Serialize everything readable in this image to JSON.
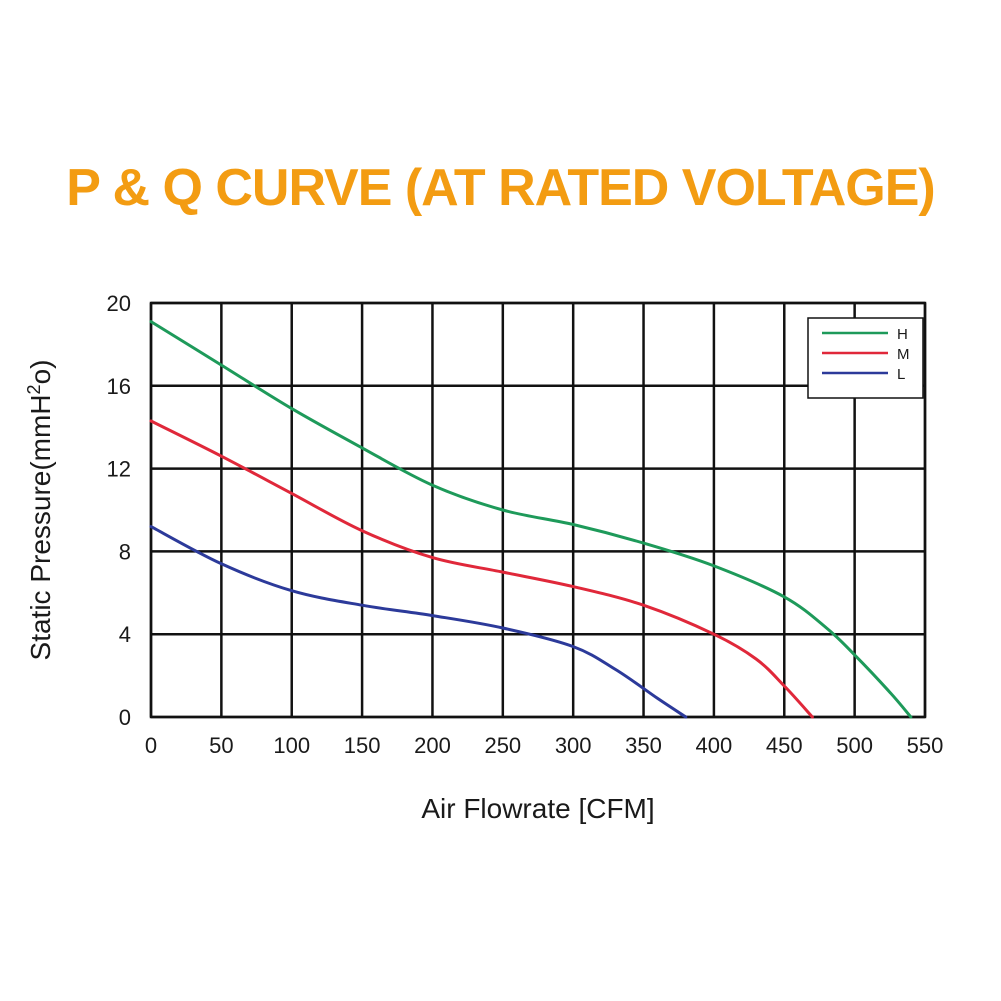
{
  "chart_data": {
    "type": "line",
    "title": "P & Q CURVE (AT RATED VOLTAGE)",
    "xlabel": "Air  Flowrate   [CFM]",
    "ylabel_main": "Static Pressure(mmH",
    "ylabel_sup": "2",
    "ylabel_end": "o)",
    "xlim": [
      0,
      550
    ],
    "ylim": [
      0,
      20
    ],
    "x_ticks": [
      "0",
      "50",
      "100",
      "150",
      "200",
      "250",
      "300",
      "350",
      "400",
      "450",
      "500",
      "550"
    ],
    "y_ticks": [
      "0",
      "4",
      "8",
      "12",
      "16",
      "20"
    ],
    "grid": true,
    "legend_position": "top-right",
    "series": [
      {
        "name": "H",
        "color": "#1e9a5a",
        "points": [
          [
            0,
            19.1
          ],
          [
            50,
            17.0
          ],
          [
            100,
            14.9
          ],
          [
            150,
            13.0
          ],
          [
            200,
            11.2
          ],
          [
            250,
            10.0
          ],
          [
            300,
            9.3
          ],
          [
            350,
            8.4
          ],
          [
            400,
            7.3
          ],
          [
            450,
            5.8
          ],
          [
            480,
            4.3
          ],
          [
            500,
            3.0
          ],
          [
            525,
            1.2
          ],
          [
            540,
            0.0
          ]
        ]
      },
      {
        "name": "M",
        "color": "#e0283a",
        "points": [
          [
            0,
            14.3
          ],
          [
            50,
            12.6
          ],
          [
            100,
            10.8
          ],
          [
            150,
            9.0
          ],
          [
            200,
            7.7
          ],
          [
            250,
            7.0
          ],
          [
            300,
            6.3
          ],
          [
            350,
            5.4
          ],
          [
            400,
            4.0
          ],
          [
            430,
            2.8
          ],
          [
            450,
            1.5
          ],
          [
            470,
            0.0
          ]
        ]
      },
      {
        "name": "L",
        "color": "#2c3a9a",
        "points": [
          [
            0,
            9.2
          ],
          [
            50,
            7.4
          ],
          [
            100,
            6.1
          ],
          [
            150,
            5.4
          ],
          [
            200,
            4.9
          ],
          [
            250,
            4.3
          ],
          [
            300,
            3.4
          ],
          [
            330,
            2.3
          ],
          [
            360,
            0.9
          ],
          [
            380,
            0.0
          ]
        ]
      }
    ]
  },
  "colors": {
    "title": "#f39c12",
    "grid": "#111111",
    "frame": "#111111"
  }
}
